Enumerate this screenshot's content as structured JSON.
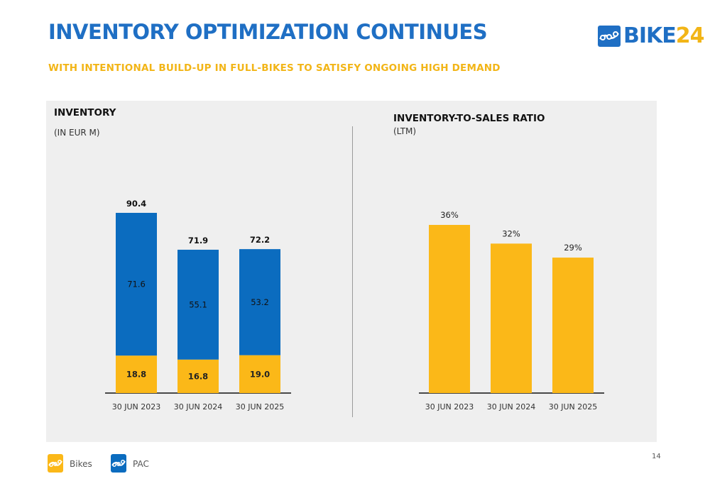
{
  "slide": {
    "title": "INVENTORY OPTIMIZATION CONTINUES",
    "subtitle": "WITH INTENTIONAL BUILD-UP IN FULL-BIKES TO SATISFY ONGOING HIGH DEMAND",
    "logo": {
      "prefix": "BIKE",
      "accent": "24"
    },
    "page_number": "14"
  },
  "colors": {
    "bikes": "#fbb818",
    "pac": "#0b6cbf",
    "title": "#1f6fc4",
    "subtitle": "#f2b517"
  },
  "legend": [
    {
      "label": "Bikes",
      "icon": "bike-chain-icon"
    },
    {
      "label": "PAC",
      "icon": "bike-chain-icon"
    }
  ],
  "chart_data": [
    {
      "type": "bar",
      "stacked": true,
      "title": "INVENTORY",
      "unit": "(IN EUR M)",
      "categories": [
        "30 JUN 2023",
        "30 JUN 2024",
        "30 JUN 2025"
      ],
      "series": [
        {
          "name": "Bikes",
          "values": [
            18.8,
            16.8,
            19.0
          ]
        },
        {
          "name": "PAC",
          "values": [
            71.6,
            55.1,
            53.2
          ]
        }
      ],
      "totals": [
        "90.4",
        "71.9",
        "72.2"
      ],
      "value_labels": {
        "Bikes": [
          "18.8",
          "16.8",
          "19.0"
        ],
        "PAC": [
          "71.6",
          "55.1",
          "53.2"
        ]
      },
      "ylim": [
        0,
        90.4
      ],
      "grid": false
    },
    {
      "type": "bar",
      "title": "INVENTORY-TO-SALES RATIO",
      "unit": "(LTM)",
      "categories": [
        "30 JUN 2023",
        "30 JUN 2024",
        "30 JUN 2025"
      ],
      "values": [
        36,
        32,
        29
      ],
      "value_labels": [
        "36%",
        "32%",
        "29%"
      ],
      "ylim": [
        0,
        36
      ],
      "grid": false
    }
  ]
}
